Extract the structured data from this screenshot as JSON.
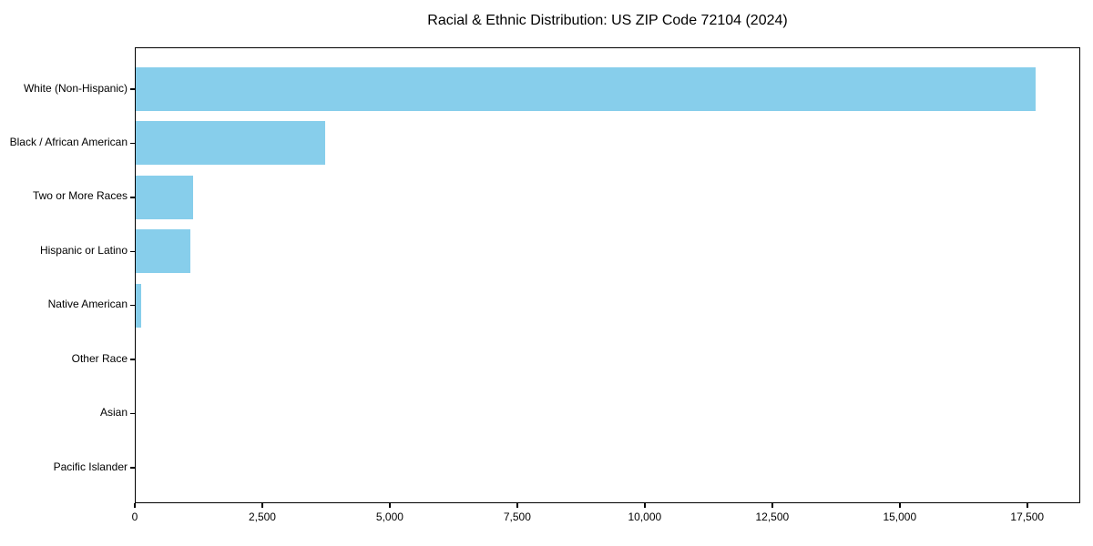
{
  "title": "Racial & Ethnic Distribution: US ZIP Code 72104 (2024)",
  "colors": {
    "bar": "#87CEEB",
    "spine": "#000000",
    "text": "#000000",
    "background": "#ffffff"
  },
  "chart_data": {
    "type": "bar",
    "orientation": "horizontal",
    "title": "Racial & Ethnic Distribution: US ZIP Code 72104 (2024)",
    "xlabel": "",
    "ylabel": "",
    "grid": false,
    "legend": false,
    "xlim": [
      0,
      18540
    ],
    "x_ticks": [
      0,
      2500,
      5000,
      7500,
      10000,
      12500,
      15000,
      17500
    ],
    "x_tick_labels": [
      "0",
      "2,500",
      "5,000",
      "7,500",
      "10,000",
      "12,500",
      "15,000",
      "17,500"
    ],
    "categories": [
      "White (Non-Hispanic)",
      "Black / African American",
      "Two or More Races",
      "Hispanic or Latino",
      "Native American",
      "Other Race",
      "Asian",
      "Pacific Islander"
    ],
    "values": [
      17650,
      3715,
      1125,
      1075,
      110,
      0,
      0,
      0
    ],
    "bar_color": "#87CEEB"
  }
}
